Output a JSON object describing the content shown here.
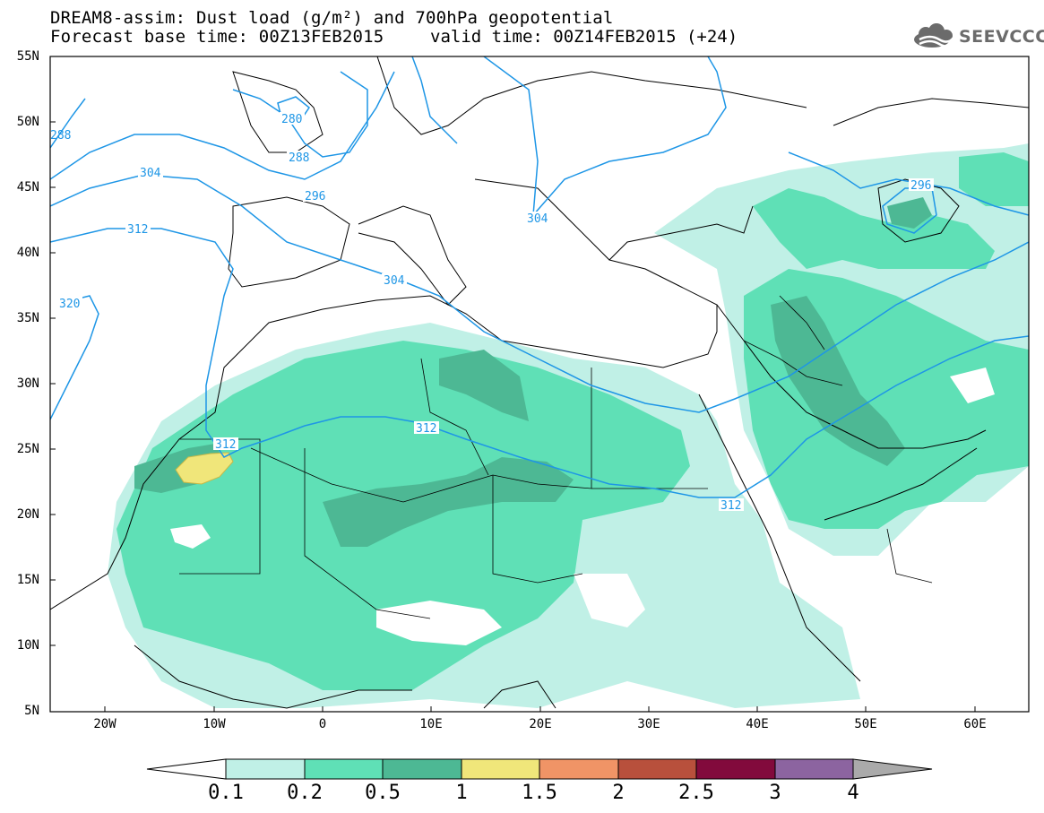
{
  "title": {
    "line1": "DREAM8-assim: Dust load (g/m²) and 700hPa geopotential",
    "line2": "Forecast base time: 00Z13FEB2015",
    "valid": "valid time: 00Z14FEB2015 (+24)"
  },
  "logo": {
    "text": "SEEVCCC",
    "icon": "cloud-icon"
  },
  "map": {
    "lat_labels": [
      "55N",
      "50N",
      "45N",
      "40N",
      "35N",
      "30N",
      "25N",
      "20N",
      "15N",
      "10N",
      "5N"
    ],
    "lon_labels": [
      "20W",
      "10W",
      "0",
      "10E",
      "20E",
      "30E",
      "40E",
      "50E",
      "60E"
    ],
    "contour_labels": [
      "280",
      "288",
      "288",
      "296",
      "296",
      "304",
      "304",
      "304",
      "312",
      "312",
      "312",
      "312",
      "320"
    ]
  },
  "colorbar": {
    "ticks": [
      "0.1",
      "0.2",
      "0.5",
      "1",
      "1.5",
      "2",
      "2.5",
      "3",
      "4"
    ],
    "colors": [
      "#c0f0e6",
      "#5fe0b6",
      "#4db894",
      "#f0e67a",
      "#f09466",
      "#b8503c",
      "#820a3c",
      "#8c64a0",
      "#aaaaaa"
    ]
  }
}
